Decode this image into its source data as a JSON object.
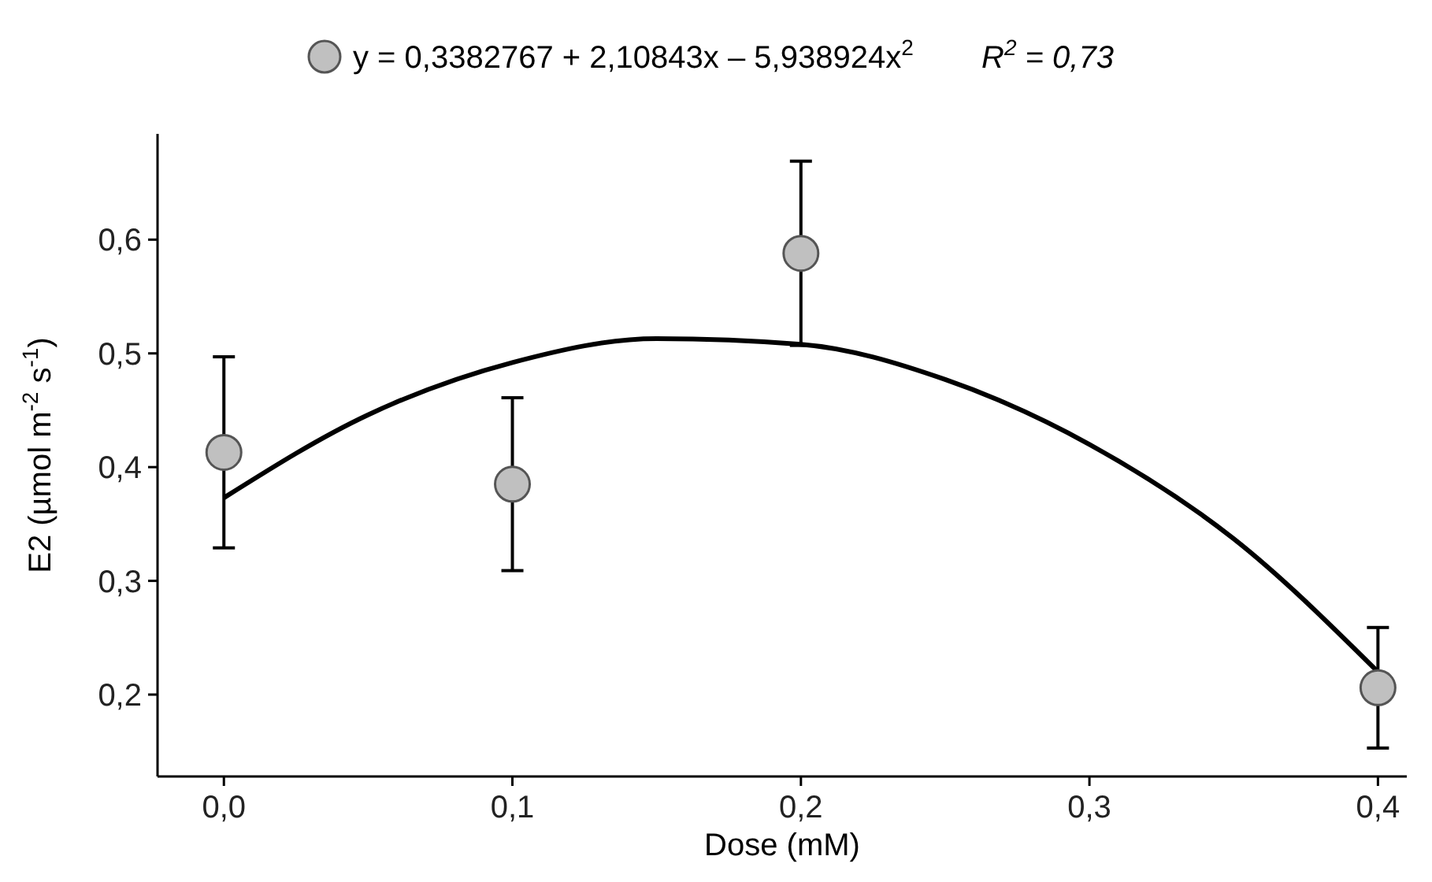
{
  "chart_data": {
    "type": "scatter",
    "xlabel": "Dose (mM)",
    "ylabel": "E2 (µmol m$^{-2}$ s$^{-1}$)",
    "xlim": [
      -0.023,
      0.41
    ],
    "ylim": [
      0.128,
      0.693
    ],
    "xticks": [
      {
        "value": 0,
        "label": "0,0"
      },
      {
        "value": 0.1,
        "label": "0,1"
      },
      {
        "value": 0.2,
        "label": "0,2"
      },
      {
        "value": 0.3,
        "label": "0,3"
      },
      {
        "value": 0.4,
        "label": "0,4"
      }
    ],
    "yticks": [
      {
        "value": 0.2,
        "label": "0,2"
      },
      {
        "value": 0.3,
        "label": "0,3"
      },
      {
        "value": 0.4,
        "label": "0,4"
      },
      {
        "value": 0.5,
        "label": "0,5"
      },
      {
        "value": 0.6,
        "label": "0,6"
      }
    ],
    "grid": false,
    "legend": "top",
    "annotations": [
      "R$^{2}$ = 0,73"
    ],
    "series": [
      {
        "type": "line",
        "color": "#000000",
        "marker": "none",
        "line_style": "solid",
        "x": [
          0,
          0.05,
          0.1,
          0.15,
          0.2,
          0.25,
          0.3,
          0.35,
          0.4
        ],
        "values": [
          0.373,
          0.446,
          0.492,
          0.513,
          0.508,
          0.477,
          0.42,
          0.337,
          0.22
        ]
      },
      {
        "name": "y = 0,3382767 + 2,10843x – 5,938924x$^{2}$",
        "color": "#c0c0c0",
        "marker": "circle",
        "x": [
          0,
          0.1,
          0.2,
          0.4
        ],
        "values": [
          0.413,
          0.385,
          0.588,
          0.206
        ],
        "errors": [
          0.084,
          0.076,
          0.081,
          0.053
        ]
      }
    ]
  }
}
